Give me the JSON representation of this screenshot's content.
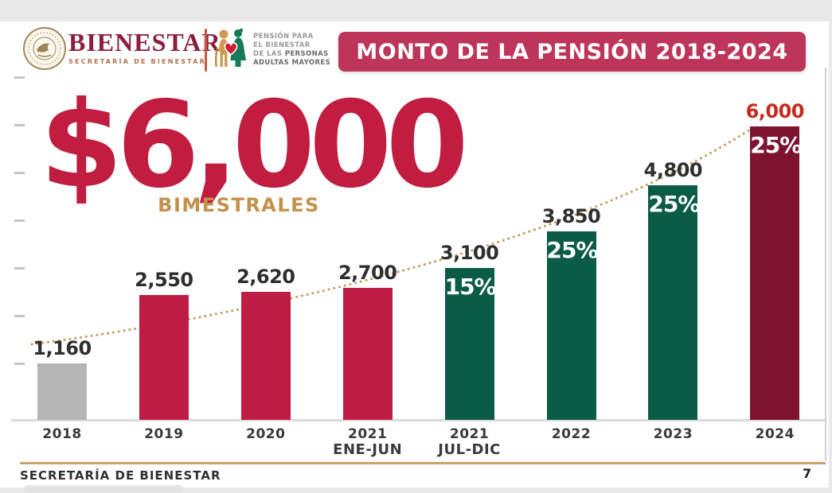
{
  "header": {
    "brand": {
      "name": "BIENESTAR",
      "subtitle": "SECRETARÍA DE BIENESTAR"
    },
    "program": {
      "line1": "PENSIÓN PARA",
      "line2": "EL BIENESTAR",
      "line3_regular": "DE LAS ",
      "line3_bold": "PERSONAS",
      "line4": "ADULTAS MAYORES"
    },
    "banner": "MONTO DE LA PENSIÓN 2018-2024"
  },
  "highlight": {
    "amount": "$6,000",
    "caption": "BIMESTRALES"
  },
  "chart_data": {
    "type": "bar",
    "title": "MONTO DE LA PENSIÓN 2018-2024",
    "xlabel": "",
    "ylabel": "",
    "ylim": [
      0,
      6000
    ],
    "grid": "off",
    "legend": "none",
    "categories": [
      "2018",
      "2019",
      "2020",
      "2021 ENE-JUN",
      "2021 JUL-DIC",
      "2022",
      "2023",
      "2024"
    ],
    "values": [
      1160,
      2550,
      2620,
      2700,
      3100,
      3850,
      4800,
      6000
    ],
    "trendline": {
      "style": "dotted",
      "color": "#c9a46a",
      "shape": "rising-convex"
    },
    "bars": [
      {
        "year": "2018",
        "sub": "",
        "value": 1160,
        "label": "1,160",
        "pct": "",
        "color": "#b5b5b5",
        "label_color": "#2f2f2f"
      },
      {
        "year": "2019",
        "sub": "",
        "value": 2550,
        "label": "2,550",
        "pct": "",
        "color": "#bf1c44",
        "label_color": "#2f2f2f"
      },
      {
        "year": "2020",
        "sub": "",
        "value": 2620,
        "label": "2,620",
        "pct": "",
        "color": "#bf1c44",
        "label_color": "#2f2f2f"
      },
      {
        "year": "2021",
        "sub": "ENE-JUN",
        "value": 2700,
        "label": "2,700",
        "pct": "",
        "color": "#bf1c44",
        "label_color": "#2f2f2f"
      },
      {
        "year": "2021",
        "sub": "JUL-DIC",
        "value": 3100,
        "label": "3,100",
        "pct": "15%",
        "color": "#0b5c47",
        "label_color": "#2f2f2f"
      },
      {
        "year": "2022",
        "sub": "",
        "value": 3850,
        "label": "3,850",
        "pct": "25%",
        "color": "#0b5c47",
        "label_color": "#2f2f2f"
      },
      {
        "year": "2023",
        "sub": "",
        "value": 4800,
        "label": "4,800",
        "pct": "25%",
        "color": "#0b5c47",
        "label_color": "#2f2f2f"
      },
      {
        "year": "2024",
        "sub": "",
        "value": 6000,
        "label": "6,000",
        "pct": "25%",
        "color": "#7e1331",
        "label_color": "#c72a1c"
      }
    ]
  },
  "footer": {
    "left": "SECRETARÍA DE BIENESTAR",
    "page": "7"
  },
  "colors": {
    "crimson": "#bf1c44",
    "teal": "#0b5c47",
    "maroon": "#7e1331",
    "gray_bar": "#b5b5b5",
    "banner": "#bd3659",
    "gold": "#c9a46a",
    "caption_gold": "#c4914c",
    "accent_red": "#c72a1c",
    "logo_maroon": "#8b1e3d"
  }
}
